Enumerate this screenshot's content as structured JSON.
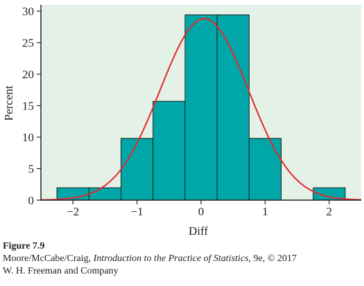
{
  "chart_data": {
    "type": "bar",
    "subtype": "histogram",
    "xlabel": "Diff",
    "ylabel": "Percent",
    "xlim": [
      -2.5,
      2.5
    ],
    "ylim": [
      0,
      31
    ],
    "xticks": [
      -2,
      -1,
      0,
      1,
      2
    ],
    "xtick_labels": [
      "−2",
      "−1",
      "0",
      "1",
      "2"
    ],
    "yticks": [
      0,
      5,
      10,
      15,
      20,
      25,
      30
    ],
    "ytick_labels": [
      "0",
      "5",
      "10",
      "15",
      "20",
      "25",
      "30"
    ],
    "bins": [
      {
        "start": -2.25,
        "end": -1.75,
        "value": 1.96
      },
      {
        "start": -1.75,
        "end": -1.25,
        "value": 1.96
      },
      {
        "start": -1.25,
        "end": -0.75,
        "value": 9.8
      },
      {
        "start": -0.75,
        "end": -0.25,
        "value": 15.69
      },
      {
        "start": -0.25,
        "end": 0.25,
        "value": 29.41
      },
      {
        "start": 0.25,
        "end": 0.75,
        "value": 29.41
      },
      {
        "start": 0.75,
        "end": 1.25,
        "value": 9.8
      },
      {
        "start": 1.25,
        "end": 1.75,
        "value": 0
      },
      {
        "start": 1.75,
        "end": 2.25,
        "value": 1.96
      }
    ],
    "overlay_curve": {
      "type": "normal",
      "mean": 0.05,
      "sd": 0.69,
      "peak": 28.8
    },
    "bar_color": "#00a7a8",
    "curve_color": "#e8262b",
    "plot_background": "#e4f1e6",
    "grid": false
  },
  "caption": {
    "figure": "Figure 7.9",
    "credit_authors": "Moore/McCabe/Craig, ",
    "credit_title": "Introduction to the Practice of Statistics",
    "credit_rest": ", 9e, © 2017",
    "credit_publisher": "W. H. Freeman and Company"
  }
}
